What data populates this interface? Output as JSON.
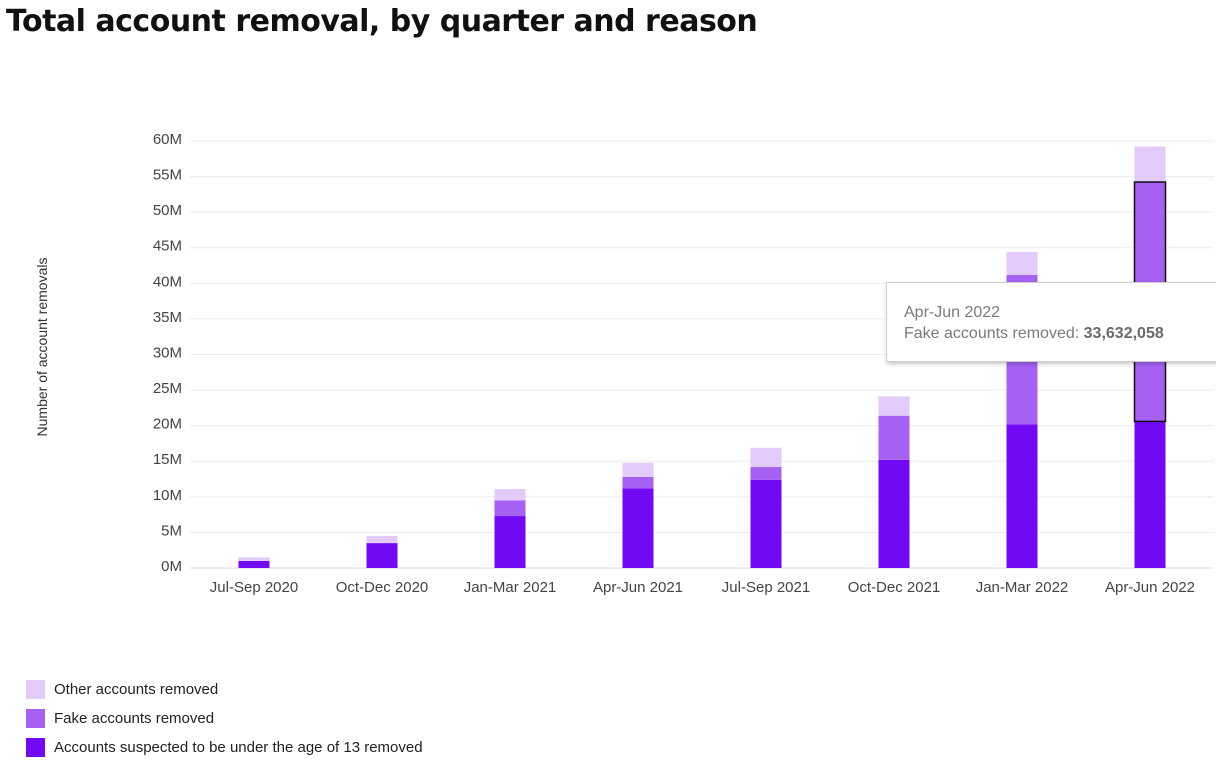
{
  "page": {
    "title": "Total account removal, by quarter and reason"
  },
  "chart_data": {
    "type": "bar",
    "stacked": true,
    "ylabel": "Number of account removals",
    "xlabel": "",
    "ylim": [
      0,
      60000000
    ],
    "yticks": [
      0,
      5000000,
      10000000,
      15000000,
      20000000,
      25000000,
      30000000,
      35000000,
      40000000,
      45000000,
      50000000,
      55000000,
      60000000
    ],
    "ytick_labels": [
      "0M",
      "5M",
      "10M",
      "15M",
      "20M",
      "25M",
      "30M",
      "35M",
      "40M",
      "45M",
      "50M",
      "55M",
      "60M"
    ],
    "categories": [
      "Jul-Sep 2020",
      "Oct-Dec 2020",
      "Jan-Mar 2021",
      "Apr-Jun 2021",
      "Jul-Sep 2021",
      "Oct-Dec 2021",
      "Jan-Mar 2022",
      "Apr-Jun 2022"
    ],
    "grid": true,
    "legend_position": "bottom-left",
    "series": [
      {
        "name": "Accounts suspected to be under the age of 13 removed",
        "color": "#7209f5",
        "values": [
          1000000,
          3500000,
          7300000,
          11200000,
          12400000,
          15200000,
          20200000,
          20600000
        ]
      },
      {
        "name": "Fake accounts removed",
        "color": "#a661f2",
        "values": [
          0,
          0,
          2200000,
          1600000,
          1800000,
          6200000,
          21000000,
          33632058
        ]
      },
      {
        "name": "Other accounts removed",
        "color": "#e2cbfb",
        "values": [
          500000,
          1000000,
          1600000,
          2000000,
          2700000,
          2700000,
          3200000,
          5000000
        ]
      }
    ],
    "highlight": {
      "category_index": 7,
      "series_index": 1
    },
    "tooltip": {
      "title": "Apr-Jun 2022",
      "label": "Fake accounts removed:",
      "value": "33,632,058"
    }
  },
  "legend": {
    "items": [
      {
        "label": "Other accounts removed",
        "color": "#e2cbfb"
      },
      {
        "label": "Fake accounts removed",
        "color": "#a661f2"
      },
      {
        "label": "Accounts suspected to be under the age of 13 removed",
        "color": "#7209f5"
      }
    ]
  }
}
